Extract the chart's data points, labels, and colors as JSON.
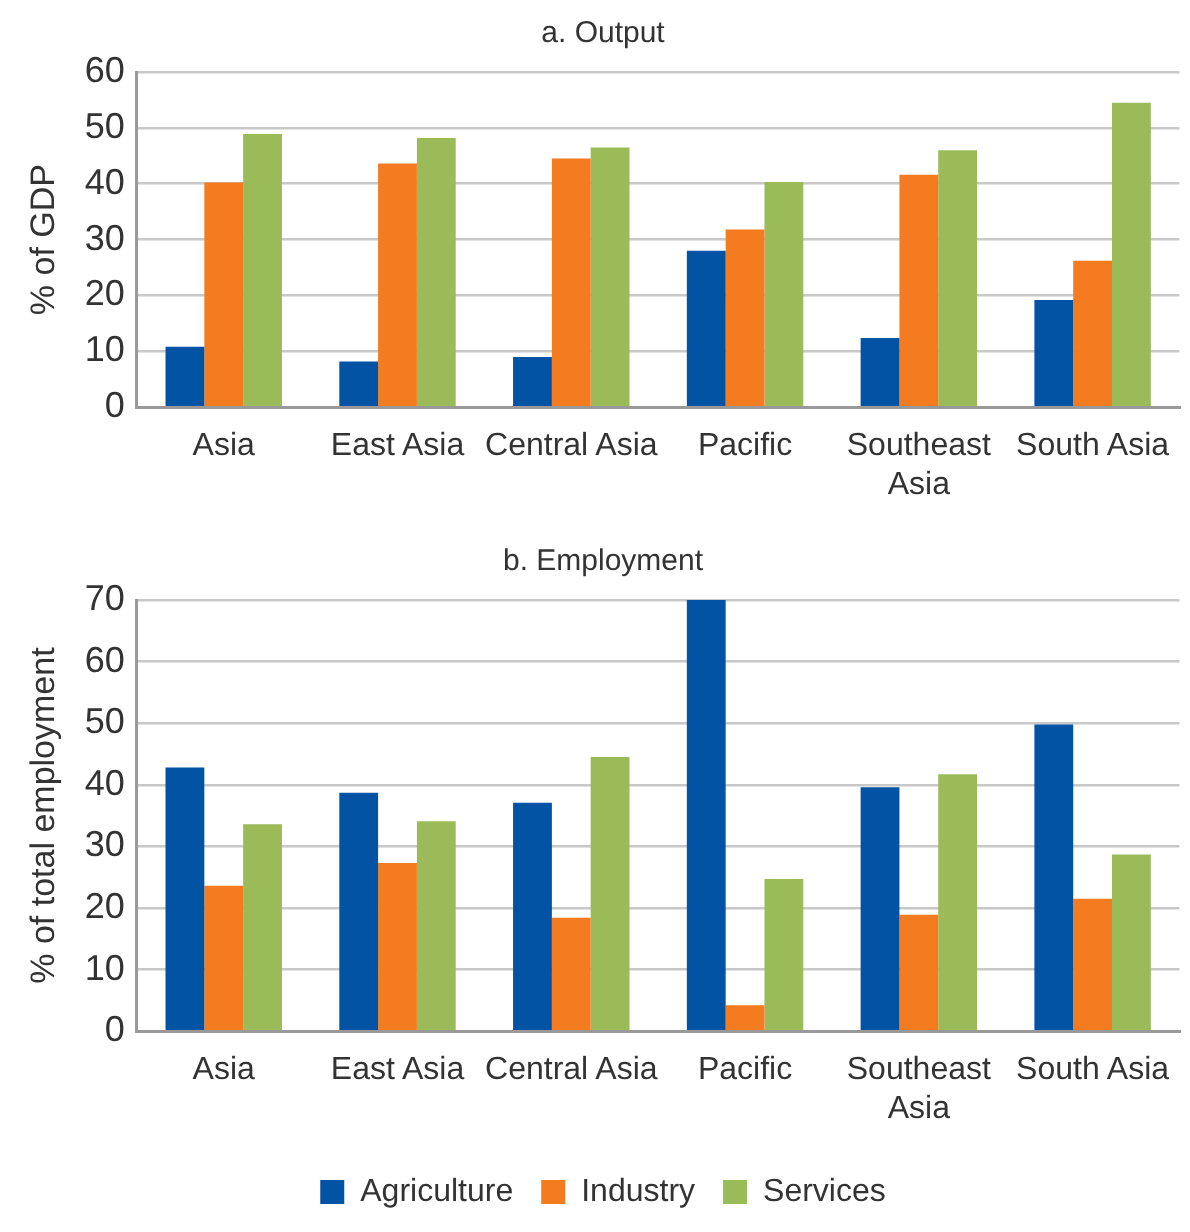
{
  "chart_data": [
    {
      "type": "bar",
      "title": "a. Output",
      "ylabel": "% of GDP",
      "categories": [
        "Asia",
        "East Asia",
        "Central Asia",
        "Pacific",
        "Southeast Asia",
        "South Asia"
      ],
      "ylim": [
        0,
        60
      ],
      "yticks": [
        0,
        10,
        20,
        30,
        40,
        50,
        60
      ],
      "grid": "y",
      "legend": false,
      "series": [
        {
          "color": "#0353a4",
          "values": [
            10.8,
            8.2,
            9,
            28,
            12.4,
            19.2
          ]
        },
        {
          "color": "#f47b20",
          "values": [
            40.2,
            43.6,
            44.5,
            31.8,
            41.6,
            26.2
          ]
        },
        {
          "color": "#9bbb59",
          "values": [
            48.9,
            48.2,
            46.5,
            40.3,
            46,
            54.5
          ]
        }
      ]
    },
    {
      "type": "bar",
      "title": "b. Employment",
      "ylabel": "% of total employment",
      "categories": [
        "Asia",
        "East Asia",
        "Central Asia",
        "Pacific",
        "Southeast Asia",
        "South Asia"
      ],
      "ylim": [
        0,
        70
      ],
      "yticks": [
        0,
        10,
        20,
        30,
        40,
        50,
        60,
        70
      ],
      "grid": "y",
      "legend": "bottom",
      "series": [
        {
          "name": "Agriculture",
          "color": "#0353a4",
          "values": [
            42.8,
            38.7,
            37.1,
            70,
            39.6,
            49.8
          ]
        },
        {
          "name": "Industry",
          "color": "#f47b20",
          "values": [
            23.6,
            27.3,
            18.4,
            4.2,
            18.9,
            21.5
          ]
        },
        {
          "name": "Services",
          "color": "#9bbb59",
          "values": [
            33.6,
            34.1,
            44.5,
            24.7,
            41.7,
            28.7
          ]
        }
      ]
    }
  ]
}
